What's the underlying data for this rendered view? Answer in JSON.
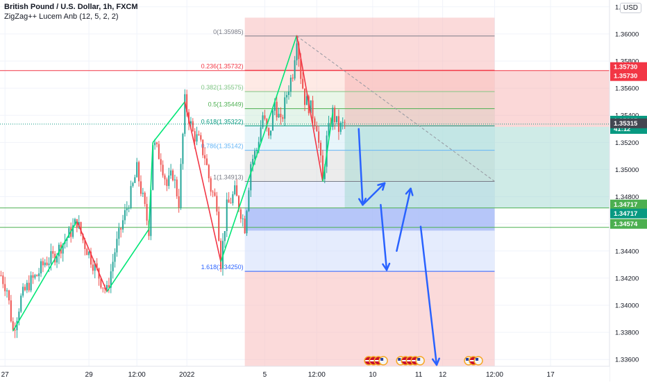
{
  "header": {
    "title": "British Pound / U.S. Dollar, 1h, FXCM",
    "indicator": "ZigZag++ Lucem Anb (12, 5, 2, 2)",
    "currency": "USD"
  },
  "colors": {
    "up": "#26a69a",
    "down": "#ef5350",
    "zigzag_up": "#00e676",
    "zigzag_down": "#f23645",
    "arrow": "#2962ff",
    "grid": "#f0f3fa",
    "axis_text": "#131722"
  },
  "chart_data": {
    "type": "candlestick",
    "symbol": "GBPUSD",
    "timeframe": "1h",
    "y_axis": {
      "min": 1.3355,
      "max": 1.3625,
      "ticks": [
        1.336,
        1.338,
        1.34,
        1.342,
        1.344,
        1.346,
        1.348,
        1.35,
        1.352,
        1.354,
        1.356,
        1.358,
        1.36,
        1.362
      ],
      "tick_labels": [
        "1.33600",
        "1.33800",
        "1.34000",
        "1.34200",
        "1.34400",
        "1.34600",
        "1.34800",
        "1.35000",
        "1.35200",
        "1.35400",
        "1.35600",
        "1.35800",
        "1.36000",
        "1.36200"
      ]
    },
    "x_axis": {
      "labels": [
        {
          "text": "27",
          "bar": 2
        },
        {
          "text": "29",
          "bar": 44
        },
        {
          "text": "12:00",
          "bar": 68
        },
        {
          "text": "2022",
          "bar": 93
        },
        {
          "text": "5",
          "bar": 132
        },
        {
          "text": "12:00",
          "bar": 158
        },
        {
          "text": "10",
          "bar": 186
        },
        {
          "text": "11",
          "bar": 209
        },
        {
          "text": "12",
          "bar": 221
        },
        {
          "text": "12:00",
          "bar": 247
        },
        {
          "text": "17",
          "bar": 275
        }
      ],
      "total_bars": 305
    },
    "price_path": [
      [
        0,
        1.3422
      ],
      [
        3,
        1.3412
      ],
      [
        6,
        1.3381
      ],
      [
        10,
        1.3405
      ],
      [
        14,
        1.3416
      ],
      [
        18,
        1.3422
      ],
      [
        22,
        1.3432
      ],
      [
        26,
        1.3435
      ],
      [
        30,
        1.3444
      ],
      [
        34,
        1.3452
      ],
      [
        38,
        1.3462
      ],
      [
        41,
        1.3448
      ],
      [
        44,
        1.3438
      ],
      [
        47,
        1.3428
      ],
      [
        50,
        1.3418
      ],
      [
        53,
        1.341
      ],
      [
        57,
        1.344
      ],
      [
        61,
        1.3462
      ],
      [
        65,
        1.3482
      ],
      [
        68,
        1.35
      ],
      [
        71,
        1.3478
      ],
      [
        74,
        1.3456
      ],
      [
        76,
        1.352
      ],
      [
        80,
        1.3508
      ],
      [
        83,
        1.3488
      ],
      [
        86,
        1.3497
      ],
      [
        89,
        1.3476
      ],
      [
        92,
        1.355
      ],
      [
        96,
        1.3527
      ],
      [
        99,
        1.3521
      ],
      [
        102,
        1.351
      ],
      [
        105,
        1.3486
      ],
      [
        108,
        1.3475
      ],
      [
        110,
        1.3432
      ],
      [
        113,
        1.3472
      ],
      [
        117,
        1.3483
      ],
      [
        120,
        1.3469
      ],
      [
        122,
        1.3458
      ],
      [
        125,
        1.3505
      ],
      [
        128,
        1.3515
      ],
      [
        131,
        1.354
      ],
      [
        134,
        1.3522
      ],
      [
        137,
        1.355
      ],
      [
        140,
        1.3533
      ],
      [
        143,
        1.3556
      ],
      [
        146,
        1.3572
      ],
      [
        148,
        1.3599
      ],
      [
        150,
        1.357
      ],
      [
        152,
        1.3552
      ],
      [
        155,
        1.3545
      ],
      [
        158,
        1.3533
      ],
      [
        161,
        1.3491
      ],
      [
        163,
        1.3522
      ],
      [
        166,
        1.3542
      ],
      [
        169,
        1.353
      ],
      [
        172,
        1.3534
      ]
    ],
    "zigzag_pivots": [
      [
        6,
        1.3381
      ],
      [
        38,
        1.3462
      ],
      [
        53,
        1.341
      ],
      [
        74,
        1.3456
      ],
      [
        76,
        1.352
      ],
      [
        92,
        1.355
      ],
      [
        110,
        1.3432
      ],
      [
        137,
        1.355
      ],
      [
        148,
        1.3599
      ],
      [
        161,
        1.3491
      ],
      [
        166,
        1.3542
      ]
    ],
    "fibonacci": {
      "start_bar": 122,
      "end_bar": 247,
      "levels": [
        {
          "ratio": "0",
          "price": 1.35985,
          "label": "0(1.35985)",
          "color": "#787b86"
        },
        {
          "ratio": "0.236",
          "price": 1.35732,
          "label": "0.236(1.35732)",
          "color": "#f23645"
        },
        {
          "ratio": "0.382",
          "price": 1.35575,
          "label": "0.382(1.35575)",
          "color": "#81c784"
        },
        {
          "ratio": "0.5",
          "price": 1.35449,
          "label": "0.5(1.35449)",
          "color": "#4caf50"
        },
        {
          "ratio": "0.618",
          "price": 1.35322,
          "label": "0.618(1.35322)",
          "color": "#089981"
        },
        {
          "ratio": "0.786",
          "price": 1.35142,
          "label": "0.786(1.35142)",
          "color": "#64b5f6"
        },
        {
          "ratio": "1",
          "price": 1.34913,
          "label": "1(1.34913)",
          "color": "#787b86"
        },
        {
          "ratio": "1.618",
          "price": 1.3425,
          "label": "1.618(1.34250)",
          "color": "#2962ff"
        }
      ]
    },
    "position": {
      "start_bar": 172,
      "entry": 1.35315,
      "stop": 1.3573,
      "target": 1.34717
    },
    "trend_line": {
      "from": [
        148,
        1.35985
      ],
      "to": [
        247,
        1.34913
      ]
    },
    "horizontal_lines": [
      {
        "price": 1.3573,
        "color": "#f23645"
      },
      {
        "price": 1.34717,
        "color": "#4caf50"
      },
      {
        "price": 1.34574,
        "color": "#4caf50"
      }
    ],
    "blue_zone": {
      "from_bar": 122,
      "to_bar": 247,
      "top": 1.34717,
      "bottom": 1.3455
    },
    "forecast_arrows": [
      {
        "from": [
          179,
          1.353
        ],
        "to": [
          181,
          1.3474
        ]
      },
      {
        "from": [
          181,
          1.3474
        ],
        "to": [
          192,
          1.349
        ]
      },
      {
        "from": [
          190,
          1.3474
        ],
        "to": [
          193,
          1.3426
        ]
      },
      {
        "from": [
          198,
          1.344
        ],
        "to": [
          205,
          1.3486
        ]
      },
      {
        "from": [
          210,
          1.3458
        ],
        "to": [
          218,
          1.3356
        ]
      }
    ],
    "price_badges": [
      {
        "price": 1.3573,
        "lines": [
          "1.35730"
        ],
        "bg": "#f23645",
        "fg": "#ffffff"
      },
      {
        "price": 1.3573,
        "lines": [
          "1.35730"
        ],
        "bg": "#f23645",
        "fg": "#ffffff",
        "offset": 1
      },
      {
        "price": 1.35335,
        "lines": [
          "1.35335",
          "41:12"
        ],
        "bg": "#089981",
        "fg": "#ffffff"
      },
      {
        "price": 1.35315,
        "lines": [
          "1.35315"
        ],
        "bg": "#434651",
        "fg": "#ffffff"
      },
      {
        "price": 1.34717,
        "lines": [
          "1.34717"
        ],
        "bg": "#4caf50",
        "fg": "#ffffff"
      },
      {
        "price": 1.34717,
        "lines": [
          "1.34717"
        ],
        "bg": "#089981",
        "fg": "#ffffff",
        "offset": 1
      },
      {
        "price": 1.34574,
        "lines": [
          "1.34574"
        ],
        "bg": "#4caf50",
        "fg": "#ffffff"
      }
    ],
    "event_icons": [
      {
        "bar": 184,
        "flags": [
          "gb",
          "gb",
          "gb",
          "us"
        ]
      },
      {
        "bar": 200,
        "flags": [
          "us",
          "gb",
          "gb",
          "gb",
          "us"
        ]
      },
      {
        "bar": 234,
        "flags": [
          "us",
          "gb",
          "us"
        ]
      }
    ]
  }
}
